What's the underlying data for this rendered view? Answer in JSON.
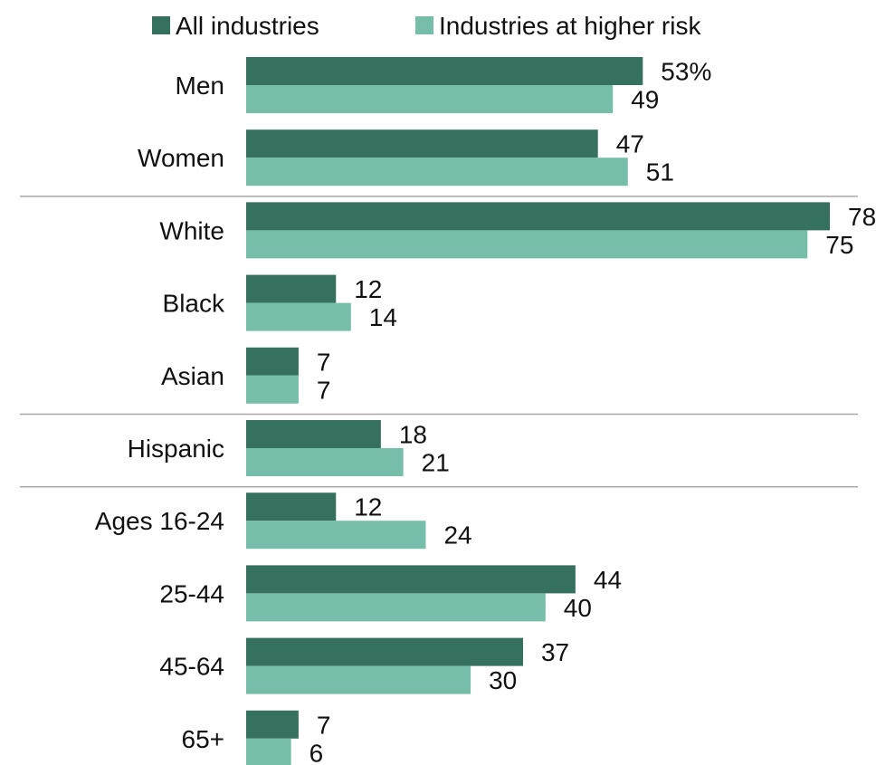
{
  "chart_data": {
    "type": "bar",
    "orientation": "horizontal",
    "categories": [
      "Men",
      "Women",
      "White",
      "Black",
      "Asian",
      "Hispanic",
      "Ages 16-24",
      "25-44",
      "45-64",
      "65+"
    ],
    "series": [
      {
        "name": "All industries",
        "color": "#36705f",
        "values": [
          53,
          47,
          78,
          12,
          7,
          18,
          12,
          44,
          37,
          7
        ],
        "labels": [
          "53%",
          "47",
          "78",
          "12",
          "7",
          "18",
          "12",
          "44",
          "37",
          "7"
        ]
      },
      {
        "name": "Industries at higher risk",
        "color": "#76bdaa",
        "values": [
          49,
          51,
          75,
          14,
          7,
          21,
          24,
          40,
          30,
          6
        ],
        "labels": [
          "49",
          "51",
          "75",
          "14",
          "7",
          "21",
          "24",
          "40",
          "30",
          "6"
        ]
      }
    ],
    "title": "",
    "xlabel": "",
    "ylabel": "",
    "xlim": [
      0,
      78
    ],
    "grid": false,
    "legend_position": "top",
    "group_separators_after": [
      "Women",
      "Asian",
      "Hispanic"
    ]
  }
}
